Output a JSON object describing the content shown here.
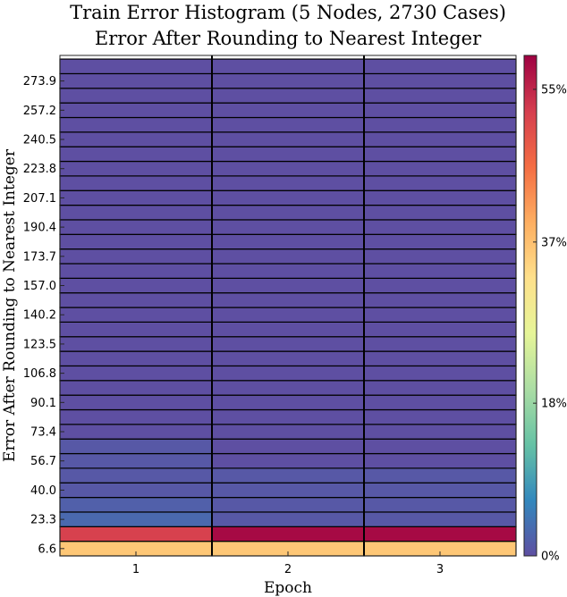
{
  "chart_data": {
    "type": "heatmap",
    "title": "Train Error Histogram (5 Nodes, 2730 Cases)",
    "subtitle": "Error After Rounding to Nearest Integer",
    "xlabel": "Epoch",
    "ylabel": "Error After Rounding to Nearest Integer",
    "x": [
      "1",
      "2",
      "3"
    ],
    "y_bin_count": 34,
    "y_tick_labels": [
      "6.6",
      "23.3",
      "40.0",
      "56.7",
      "73.4",
      "90.1",
      "106.8",
      "123.5",
      "140.2",
      "157.0",
      "173.7",
      "190.4",
      "207.1",
      "223.8",
      "240.5",
      "257.2",
      "273.9"
    ],
    "values_percent": [
      [
        36,
        36,
        36
      ],
      [
        52,
        58,
        58
      ],
      [
        3,
        1,
        1
      ],
      [
        2,
        1,
        1
      ],
      [
        1,
        1,
        1
      ],
      [
        1,
        1,
        1
      ],
      [
        1,
        0,
        0
      ],
      [
        1,
        0,
        0
      ],
      [
        0,
        0,
        0
      ],
      [
        0,
        0,
        0
      ],
      [
        0,
        0,
        0
      ],
      [
        0,
        0,
        0
      ],
      [
        0,
        0,
        0
      ],
      [
        0,
        0,
        0
      ],
      [
        0,
        0,
        0
      ],
      [
        0,
        0,
        0
      ],
      [
        0,
        0,
        0
      ],
      [
        0,
        0,
        0
      ],
      [
        0,
        0,
        0
      ],
      [
        0,
        0,
        0
      ],
      [
        0,
        0,
        0
      ],
      [
        0,
        0,
        0
      ],
      [
        0,
        0,
        0
      ],
      [
        0,
        0,
        0
      ],
      [
        0,
        0,
        0
      ],
      [
        0,
        0,
        0
      ],
      [
        0,
        0,
        0
      ],
      [
        0,
        0,
        0
      ],
      [
        0,
        0,
        0
      ],
      [
        0,
        0,
        0
      ],
      [
        0,
        0,
        0
      ],
      [
        0,
        0,
        0
      ],
      [
        0,
        0,
        0
      ],
      [
        0,
        0,
        0
      ]
    ],
    "colorbar": {
      "range": [
        0,
        59
      ],
      "ticks": [
        0,
        18,
        37,
        55
      ],
      "tick_labels": [
        "0%",
        "18%",
        "37%",
        "55%"
      ],
      "colormap": [
        "#5e4fa2",
        "#3288bd",
        "#66c2a5",
        "#abdda4",
        "#e6f598",
        "#fee08b",
        "#fdae61",
        "#f46d43",
        "#d53e4f",
        "#9e0142"
      ]
    },
    "grid": false
  }
}
